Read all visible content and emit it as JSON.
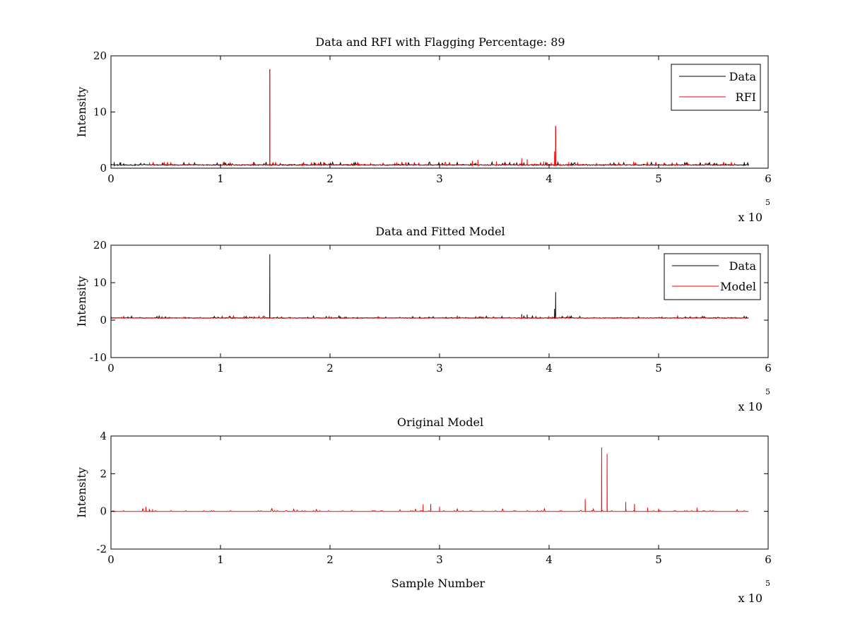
{
  "colors": {
    "data": "#000000",
    "rfi": "#ff0000",
    "model": "#ff0000",
    "axes": "#000000",
    "background": "#ffffff"
  },
  "chart_data": [
    {
      "type": "line",
      "title": "Data and RFI with Flagging Percentage: 89",
      "xlabel": "",
      "ylabel": "Intensity",
      "xlim": [
        0,
        6
      ],
      "ylim": [
        0,
        20
      ],
      "xticks": [
        "0",
        "1",
        "2",
        "3",
        "4",
        "5",
        "6"
      ],
      "yticks": [
        "0",
        "10",
        "20"
      ],
      "x_multiplier": {
        "base": "x 10",
        "exponent": "5"
      },
      "legend": {
        "placement": "top-right",
        "entries": [
          "Data",
          "RFI"
        ]
      },
      "series": [
        {
          "name": "Data",
          "color": "#000000",
          "baseline": 0.5,
          "x_range": [
            0,
            5.82
          ],
          "points": [
            [
              0,
              0.5
            ],
            [
              0.0,
              1.0
            ],
            [
              0.03,
              1.1
            ],
            [
              0.06,
              0.7
            ],
            [
              0.09,
              1.0
            ],
            [
              0.12,
              0.6
            ],
            [
              0.22,
              0.8
            ],
            [
              0.25,
              0.5
            ],
            [
              1.45,
              0.5
            ],
            [
              1.45,
              17.6
            ],
            [
              1.45,
              0.5
            ],
            [
              4.05,
              0.6
            ],
            [
              4.06,
              3.2
            ],
            [
              4.06,
              7.5
            ],
            [
              4.07,
              0.7
            ],
            [
              4.2,
              0.8
            ],
            [
              4.35,
              0.6
            ],
            [
              4.5,
              0.7
            ],
            [
              4.6,
              0.6
            ],
            [
              5.78,
              0.7
            ],
            [
              5.82,
              0.5
            ]
          ]
        },
        {
          "name": "RFI",
          "color": "#ff0000",
          "baseline": 0.5,
          "x_range": [
            0.35,
            5.7
          ],
          "points": [
            [
              1.45,
              17.6
            ],
            [
              3.3,
              1.3
            ],
            [
              3.35,
              1.5
            ],
            [
              3.52,
              1.2
            ],
            [
              3.6,
              1.0
            ],
            [
              3.75,
              1.8
            ],
            [
              3.8,
              1.6
            ],
            [
              3.95,
              1.2
            ],
            [
              4.02,
              1.0
            ],
            [
              4.05,
              3.0
            ],
            [
              4.06,
              7.5
            ],
            [
              4.1,
              0.8
            ],
            [
              4.18,
              1.1
            ]
          ]
        }
      ]
    },
    {
      "type": "line",
      "title": "Data and Fitted Model",
      "xlabel": "",
      "ylabel": "Intensity",
      "xlim": [
        0,
        6
      ],
      "ylim": [
        -10,
        20
      ],
      "xticks": [
        "0",
        "1",
        "2",
        "3",
        "4",
        "5",
        "6"
      ],
      "yticks": [
        "-10",
        "0",
        "10",
        "20"
      ],
      "x_multiplier": {
        "base": "x 10",
        "exponent": "5"
      },
      "legend": {
        "placement": "top-right",
        "entries": [
          "Data",
          "Model"
        ]
      },
      "series": [
        {
          "name": "Data",
          "color": "#000000",
          "baseline": 0.5,
          "x_range": [
            0,
            5.82
          ],
          "points": [
            [
              1.45,
              17.6
            ],
            [
              3.75,
              1.6
            ],
            [
              3.8,
              1.5
            ],
            [
              4.05,
              3.0
            ],
            [
              4.06,
              7.5
            ],
            [
              4.2,
              0.9
            ]
          ]
        },
        {
          "name": "Model",
          "color": "#ff0000",
          "baseline": 0.5,
          "x_range": [
            0,
            5.82
          ],
          "points": [
            [
              1.45,
              0.6
            ],
            [
              3.75,
              1.0
            ],
            [
              4.06,
              1.2
            ]
          ]
        }
      ]
    },
    {
      "type": "line",
      "title": "Original Model",
      "xlabel": "Sample Number",
      "ylabel": "Intensity",
      "xlim": [
        0,
        6
      ],
      "ylim": [
        -2,
        4
      ],
      "xticks": [
        "0",
        "1",
        "2",
        "3",
        "4",
        "5",
        "6"
      ],
      "yticks": [
        "-2",
        "0",
        "2",
        "4"
      ],
      "x_multiplier": {
        "base": "x 10",
        "exponent": "5"
      },
      "legend": null,
      "series": [
        {
          "name": "",
          "color": "#ff0000",
          "baseline": 0,
          "x_range": [
            0,
            5.82
          ],
          "points": [
            [
              0.32,
              0.25
            ],
            [
              0.35,
              0.15
            ],
            [
              0.38,
              0.12
            ],
            [
              2.85,
              0.38
            ],
            [
              2.92,
              0.4
            ],
            [
              3.0,
              0.25
            ],
            [
              4.33,
              0.65
            ],
            [
              4.48,
              3.4
            ],
            [
              4.53,
              3.05
            ],
            [
              4.7,
              0.5
            ],
            [
              4.78,
              0.4
            ],
            [
              4.9,
              0.2
            ],
            [
              5.0,
              0.15
            ],
            [
              5.35,
              0.2
            ]
          ]
        }
      ]
    }
  ]
}
